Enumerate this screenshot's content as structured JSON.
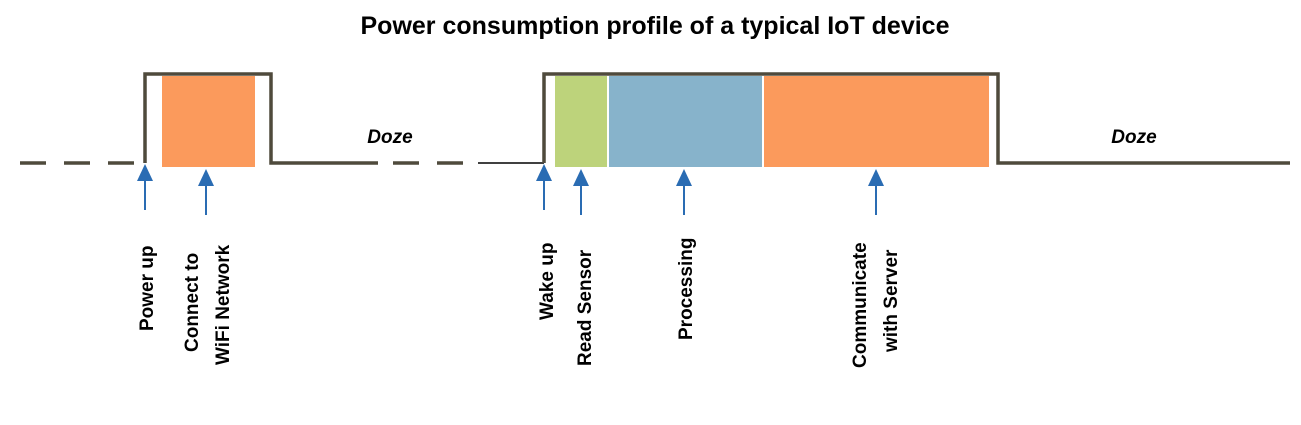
{
  "title": "Power consumption profile of a typical IoT device",
  "doze_labels": [
    "Doze",
    "Doze"
  ],
  "colors": {
    "wave": "#4f4a3c",
    "arrow": "#2a6cb3",
    "wifi_connect": "#fb9a5c",
    "read_sensor": "#bdd37b",
    "processing": "#87b3cb",
    "communicate": "#fb9a5c"
  },
  "events": {
    "power_up": [
      "Power up"
    ],
    "connect_wifi": [
      "Connect to",
      "WiFi Network"
    ],
    "wake_up": [
      "Wake up"
    ],
    "read_sensor": [
      "Read Sensor"
    ],
    "processing": [
      "Processing"
    ],
    "communicate": [
      "Communicate",
      "with Server"
    ]
  }
}
